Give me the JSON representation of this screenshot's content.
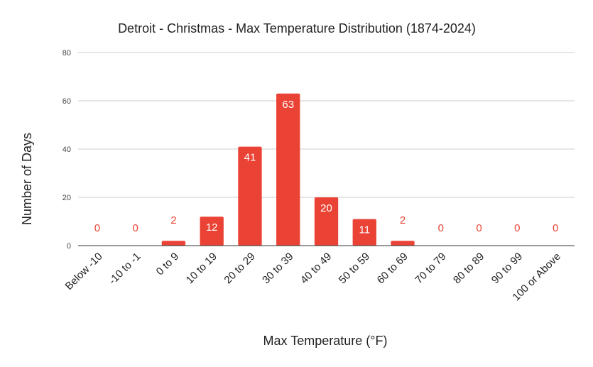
{
  "chart_data": {
    "type": "bar",
    "title": "Detroit - Christmas - Max Temperature Distribution (1874-2024)",
    "xlabel": "Max Temperature (°F)",
    "ylabel": "Number of Days",
    "categories": [
      "Below -10",
      "-10 to -1",
      "0 to 9",
      "10 to 19",
      "20 to 29",
      "30 to 39",
      "40 to 49",
      "50 to 59",
      "60 to 69",
      "70 to 79",
      "80 to 89",
      "90 to 99",
      "100 or Above"
    ],
    "values": [
      0,
      0,
      2,
      12,
      41,
      63,
      20,
      11,
      2,
      0,
      0,
      0,
      0
    ],
    "data_labels": [
      "0",
      "0",
      "2",
      "12",
      "41",
      "63",
      "20",
      "11",
      "2",
      "0",
      "0",
      "0",
      "0"
    ],
    "ylim": [
      0,
      80
    ],
    "yticks": [
      0,
      20,
      40,
      60,
      80
    ],
    "ytick_labels": [
      "0",
      "20",
      "40",
      "60",
      "80"
    ],
    "grid": true,
    "legend": "none",
    "bar_color": "#ea4335",
    "label_inside_color": "#ffffff",
    "label_outside_color": "#ea4335"
  }
}
